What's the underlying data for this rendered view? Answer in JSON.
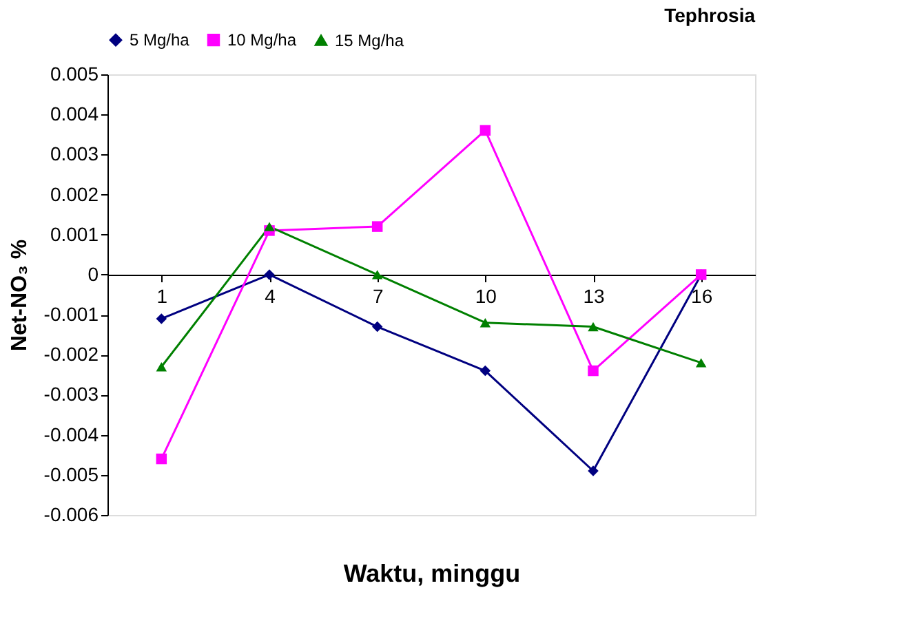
{
  "chart_data": {
    "type": "line",
    "title": "Tephrosia",
    "xlabel": "Waktu, minggu",
    "ylabel": "Net-NO₃ %",
    "categories": [
      "1",
      "4",
      "7",
      "10",
      "13",
      "16"
    ],
    "series": [
      {
        "name": "5 Mg/ha",
        "color": "#000080",
        "marker": "diamond",
        "values": [
          -0.0011,
          0,
          -0.0013,
          -0.0024,
          -0.0049,
          0
        ]
      },
      {
        "name": "10 Mg/ha",
        "color": "#ff00ff",
        "marker": "square",
        "values": [
          -0.0046,
          0.0011,
          0.0012,
          0.0036,
          -0.0024,
          0
        ]
      },
      {
        "name": "15 Mg/ha",
        "color": "#008000",
        "marker": "triangle",
        "values": [
          -0.0023,
          0.0012,
          0,
          -0.0012,
          -0.0013,
          -0.0022
        ]
      }
    ],
    "ylim": [
      -0.006,
      0.005
    ],
    "yticks": [
      -0.006,
      -0.005,
      -0.004,
      -0.003,
      -0.002,
      -0.001,
      0,
      0.001,
      0.002,
      0.003,
      0.004,
      0.005
    ],
    "grid": false,
    "legend": "top",
    "line_style": "solid"
  }
}
